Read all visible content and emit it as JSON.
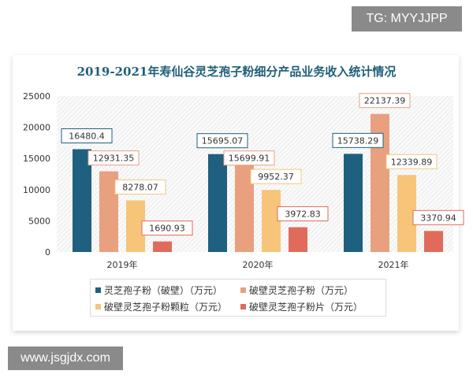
{
  "watermarks": {
    "top": "TG: MYYJJPP",
    "bottom": "www.jsgjdx.com"
  },
  "chart_data": {
    "type": "bar",
    "title": "2019-2021年寿仙谷灵芝孢子粉细分产品业务收入统计情况",
    "categories": [
      "2019年",
      "2020年",
      "2021年"
    ],
    "ylim": [
      0,
      25000
    ],
    "yticks": [
      0,
      5000,
      10000,
      15000,
      20000,
      25000
    ],
    "legend_position": "bottom",
    "series": [
      {
        "name": "灵芝孢子粉（破壁）（万元）",
        "color": "#1f5f80",
        "values": [
          16480.4,
          15695.07,
          15738.29
        ]
      },
      {
        "name": "破壁灵芝孢子粉（万元）",
        "color": "#e8a07e",
        "values": [
          12931.35,
          15699.91,
          22137.39
        ]
      },
      {
        "name": "破壁灵芝孢子粉颗粒（万元）",
        "color": "#f6c57a",
        "values": [
          8278.07,
          9952.37,
          12339.89
        ]
      },
      {
        "name": "破壁灵芝孢子粉片（万元）",
        "color": "#e06b5a",
        "values": [
          1690.93,
          3972.83,
          3370.94
        ]
      }
    ]
  }
}
